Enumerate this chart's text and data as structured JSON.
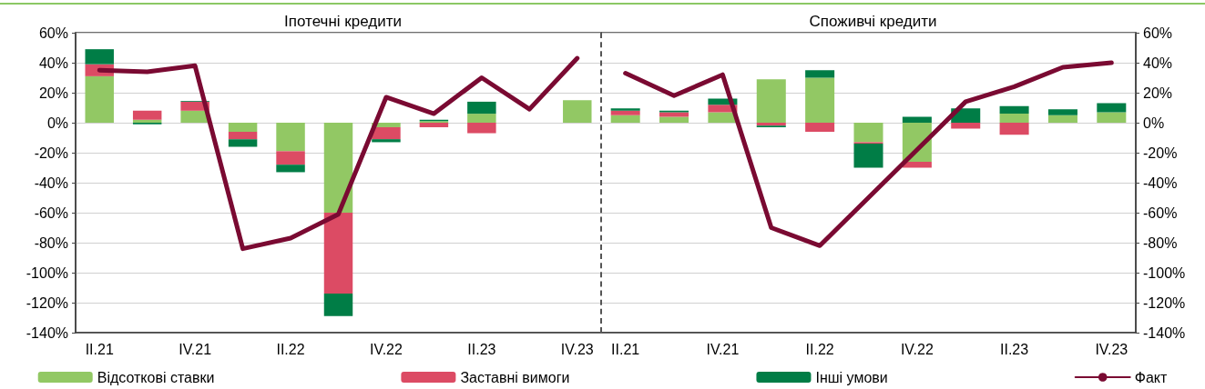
{
  "chart_data": [
    {
      "type": "bar",
      "title": "Іпотечні кредити",
      "stacked": true,
      "legend": "bottom",
      "grid": "y",
      "marker": "none",
      "categories": [
        "II.21",
        null,
        "IV.21",
        null,
        "II.22",
        null,
        "IV.22",
        null,
        "II.23",
        null,
        "IV.23"
      ],
      "ylim": [
        -140,
        60
      ],
      "yticks": [
        {
          "value": -140,
          "label": "-140%"
        },
        {
          "value": -120,
          "label": "-120%"
        },
        {
          "value": -100,
          "label": "-100%"
        },
        {
          "value": -80,
          "label": "-80%"
        },
        {
          "value": -60,
          "label": "-60%"
        },
        {
          "value": -40,
          "label": "-40%"
        },
        {
          "value": -20,
          "label": "-20%"
        },
        {
          "value": 0,
          "label": "0%"
        },
        {
          "value": 20,
          "label": "20%"
        },
        {
          "value": 40,
          "label": "40%"
        },
        {
          "value": 60,
          "label": "60%"
        }
      ],
      "series": [
        {
          "name": "Відсоткові ставки",
          "color": "#92c864",
          "values": [
            31,
            2,
            8,
            -6,
            -19,
            -60,
            -3,
            1,
            6,
            0,
            15
          ]
        },
        {
          "name": "Заставні вимоги",
          "color": "#dc4b64",
          "values": [
            8,
            6,
            6,
            -5,
            -9,
            -54,
            -8,
            -3,
            -7,
            0,
            0
          ]
        },
        {
          "name": "Інші умови",
          "color": "#007d46",
          "values": [
            10,
            -1,
            0.5,
            -5,
            -5,
            -15,
            -2,
            1,
            8,
            0,
            0
          ]
        },
        {
          "name": "Факт",
          "type": "line",
          "color": "#7a0a32",
          "values": [
            35,
            34,
            38,
            -84,
            -77,
            -61,
            17,
            6,
            30,
            9,
            43
          ]
        }
      ]
    },
    {
      "type": "bar",
      "title": "Споживчі кредити",
      "stacked": true,
      "grid": "y",
      "marker": "none",
      "categories": [
        "II.21",
        null,
        "IV.21",
        null,
        "II.22",
        null,
        "IV.22",
        null,
        "II.23",
        null,
        "IV.23"
      ],
      "ylim": [
        -140,
        60
      ],
      "yticks": [
        {
          "value": -140,
          "label": "-140%"
        },
        {
          "value": -120,
          "label": "-120%"
        },
        {
          "value": -100,
          "label": "-100%"
        },
        {
          "value": -80,
          "label": "-80%"
        },
        {
          "value": -60,
          "label": "-60%"
        },
        {
          "value": -40,
          "label": "-40%"
        },
        {
          "value": -20,
          "label": "-20%"
        },
        {
          "value": 0,
          "label": "0%"
        },
        {
          "value": 20,
          "label": "20%"
        },
        {
          "value": 40,
          "label": "40%"
        },
        {
          "value": 60,
          "label": "60%"
        }
      ],
      "series": [
        {
          "color": "#92c864",
          "values": [
            5,
            4,
            7,
            29,
            30,
            -13,
            -26,
            0,
            6,
            5,
            7
          ]
        },
        {
          "color": "#dc4b64",
          "values": [
            3,
            3,
            5,
            -2,
            -6,
            -1,
            -4,
            -4,
            -8,
            0,
            0
          ]
        },
        {
          "color": "#007d46",
          "values": [
            1.5,
            1,
            4,
            -1,
            5,
            -16,
            4,
            9.5,
            5,
            4,
            6
          ]
        },
        {
          "type": "line",
          "color": "#7a0a32",
          "values": [
            33,
            18,
            32,
            -70,
            -82,
            -50,
            -18,
            14,
            24,
            37,
            40
          ]
        }
      ]
    }
  ]
}
